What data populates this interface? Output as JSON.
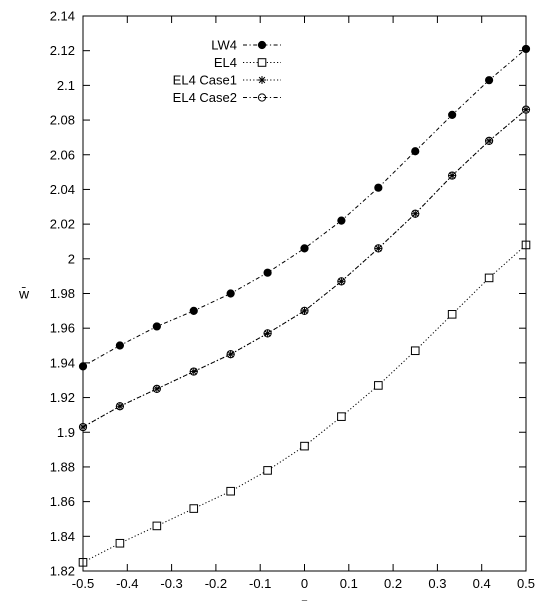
{
  "chart_data": {
    "type": "line",
    "xlabel": "z",
    "ylabel": "w̄",
    "xlim": [
      -0.5,
      0.5
    ],
    "ylim": [
      1.82,
      2.14
    ],
    "xticks": [
      "-0.5",
      "-0.4",
      "-0.3",
      "-0.2",
      "-0.1",
      "0",
      "0.1",
      "0.2",
      "0.3",
      "0.4",
      "0.5"
    ],
    "yticks": [
      "1.82",
      "1.84",
      "1.86",
      "1.88",
      "1.9",
      "1.92",
      "1.94",
      "1.96",
      "1.98",
      "2",
      "2.02",
      "2.04",
      "2.06",
      "2.08",
      "2.1",
      "2.12",
      "2.14"
    ],
    "grid": false,
    "legend_position": "top-left",
    "x": [
      -0.5,
      -0.4167,
      -0.3333,
      -0.25,
      -0.1667,
      -0.0833,
      0,
      0.0833,
      0.1667,
      0.25,
      0.3333,
      0.4167,
      0.5
    ],
    "series": [
      {
        "name": "LW4",
        "marker": "filled-circle",
        "line": "dash-dot",
        "values": [
          1.938,
          1.95,
          1.961,
          1.97,
          1.98,
          1.992,
          2.006,
          2.022,
          2.041,
          2.062,
          2.083,
          2.103,
          2.121
        ]
      },
      {
        "name": "EL4",
        "marker": "open-square",
        "line": "dotted",
        "values": [
          1.825,
          1.836,
          1.846,
          1.856,
          1.866,
          1.878,
          1.892,
          1.909,
          1.927,
          1.947,
          1.968,
          1.989,
          2.008
        ]
      },
      {
        "name": "EL4 Case1",
        "marker": "asterisk",
        "line": "dotted",
        "values": [
          1.903,
          1.915,
          1.925,
          1.935,
          1.945,
          1.957,
          1.97,
          1.987,
          2.006,
          2.026,
          2.048,
          2.068,
          2.086
        ]
      },
      {
        "name": "EL4 Case2",
        "marker": "open-circle",
        "line": "dash-dot",
        "values": [
          1.903,
          1.915,
          1.925,
          1.935,
          1.945,
          1.957,
          1.97,
          1.987,
          2.006,
          2.026,
          2.048,
          2.068,
          2.086
        ]
      }
    ]
  }
}
